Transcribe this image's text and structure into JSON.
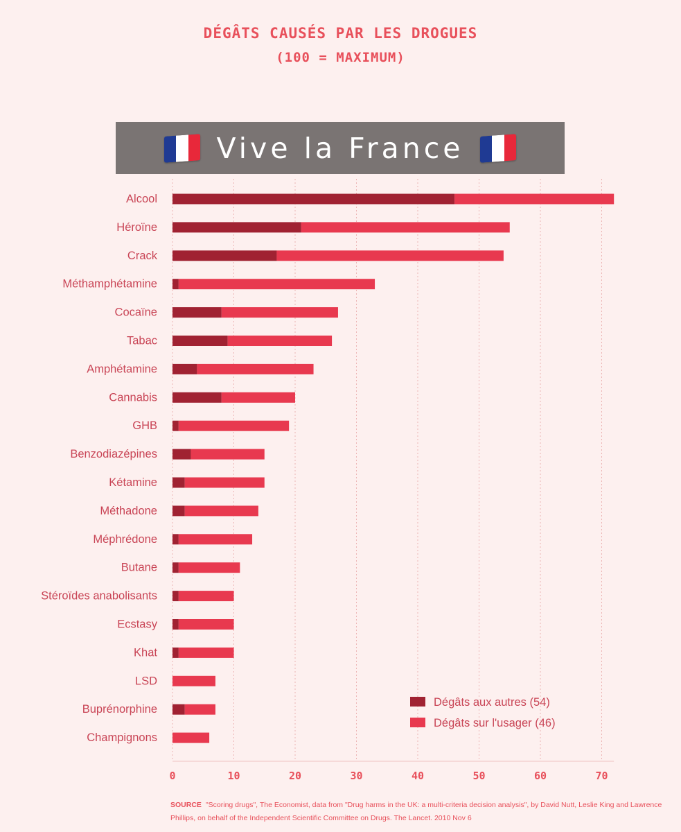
{
  "banner": {
    "text": "Vive la France",
    "flag_left": "french-flag-icon",
    "flag_right": "french-flag-icon"
  },
  "chart_data": {
    "type": "bar",
    "orientation": "horizontal",
    "stacked": true,
    "title": "DÉGÂTS CAUSÉS PAR LES DROGUES",
    "subtitle": "(100 = MAXIMUM)",
    "categories": [
      "Alcool",
      "Héroïne",
      "Crack",
      "Méthamphétamine",
      "Cocaïne",
      "Tabac",
      "Amphétamine",
      "Cannabis",
      "GHB",
      "Benzodiazépines",
      "Kétamine",
      "Méthadone",
      "Méphrédone",
      "Butane",
      "Stéroïdes anabolisants",
      "Ecstasy",
      "Khat",
      "LSD",
      "Buprénorphine",
      "Champignons"
    ],
    "series": [
      {
        "name": "Dégâts aux autres (54)",
        "color": "#a02232",
        "values": [
          46,
          21,
          17,
          1,
          8,
          9,
          4,
          8,
          1,
          3,
          2,
          2,
          1,
          1,
          1,
          1,
          1,
          0,
          2,
          0
        ]
      },
      {
        "name": "Dégâts sur l'usager (46)",
        "color": "#e8394f",
        "values": [
          26,
          34,
          37,
          32,
          19,
          17,
          19,
          12,
          18,
          12,
          13,
          12,
          12,
          10,
          9,
          9,
          9,
          7,
          5,
          6
        ]
      }
    ],
    "xlim": [
      0,
      72
    ],
    "xticks": [
      0,
      10,
      20,
      30,
      40,
      50,
      60,
      70
    ],
    "grid": "vertical-dotted",
    "legend_position": "bottom-right"
  },
  "source": {
    "label": "SOURCE",
    "text": "\"Scoring drugs\", The Economist, data from \"Drug harms in the UK: a multi-criteria decision analysis\", by David Nutt, Leslie King and Lawrence Phillips, on behalf of the Independent Scientific Committee on Drugs. The Lancet. 2010 Nov 6"
  }
}
